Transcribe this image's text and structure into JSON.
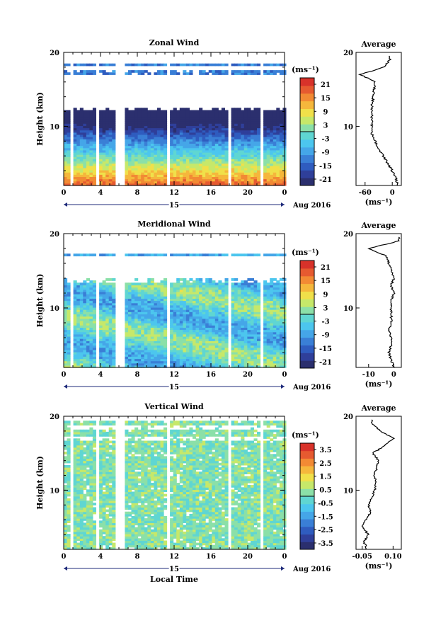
{
  "bottom_xlabel": "Local Time",
  "date_label": "Aug 2016",
  "day_label": "15",
  "palette": [
    "#2b2f6e",
    "#2f3f9a",
    "#2f5cbf",
    "#3a7fd6",
    "#45a6e8",
    "#4cc6ee",
    "#5fd6d2",
    "#8be0a8",
    "#c6e86a",
    "#f0e04a",
    "#f5b73c",
    "#f28a34",
    "#e65a30",
    "#d8322a"
  ],
  "chart_data": [
    {
      "type": "heatmap",
      "title": "Zonal Wind",
      "ylabel": "Height (km)",
      "xlim": [
        0,
        24
      ],
      "ylim": [
        2,
        20
      ],
      "xticks": [
        "0",
        "4",
        "8",
        "12",
        "16",
        "20",
        "0"
      ],
      "yticks": [
        "10",
        "20"
      ],
      "units": "(ms⁻¹)",
      "colorbar_ticks": [
        "21",
        "15",
        "9",
        "3",
        "-3",
        "-9",
        "-15",
        "-21"
      ],
      "colorbar_range": [
        -24,
        24
      ],
      "average": {
        "title": "Average",
        "xlim": [
          -80,
          20
        ],
        "xticks": [
          "-60",
          "0"
        ],
        "xlabel": "(ms⁻¹)",
        "height_km": [
          2,
          3,
          4,
          5,
          6,
          7,
          8,
          9,
          10,
          11,
          12,
          13,
          14,
          15,
          16,
          17,
          18,
          19
        ],
        "value": [
          12,
          8,
          0,
          -10,
          -20,
          -30,
          -38,
          -45,
          -45,
          -45,
          -45,
          -45,
          -42,
          -40,
          -38,
          -70,
          -20,
          -5
        ]
      }
    },
    {
      "type": "heatmap",
      "title": "Meridional Wind",
      "ylabel": "Height (km)",
      "xlim": [
        0,
        24
      ],
      "ylim": [
        2,
        20
      ],
      "xticks": [
        "0",
        "4",
        "8",
        "12",
        "16",
        "20",
        "0"
      ],
      "yticks": [
        "10",
        "20"
      ],
      "units": "(ms⁻¹)",
      "colorbar_ticks": [
        "21",
        "15",
        "9",
        "3",
        "-3",
        "-9",
        "-15",
        "-21"
      ],
      "colorbar_range": [
        -24,
        24
      ],
      "average": {
        "title": "Average",
        "xlim": [
          -15,
          3
        ],
        "xticks": [
          "-10",
          "0"
        ],
        "xlabel": "(ms⁻¹)",
        "height_km": [
          2,
          3,
          4,
          5,
          6,
          7,
          8,
          9,
          10,
          11,
          12,
          13,
          14,
          15,
          16,
          17,
          18,
          19
        ],
        "value": [
          0,
          -1,
          -2,
          -1,
          -1,
          -2,
          -1,
          -1,
          -1,
          -1,
          0,
          -1,
          0,
          -1,
          -2,
          -3,
          -10,
          2
        ]
      }
    },
    {
      "type": "heatmap",
      "title": "Vertical Wind",
      "ylabel": "Height (km)",
      "xlim": [
        0,
        24
      ],
      "ylim": [
        2,
        20
      ],
      "xticks": [
        "0",
        "4",
        "8",
        "12",
        "16",
        "20",
        "0"
      ],
      "yticks": [
        "10",
        "20"
      ],
      "units": "(ms⁻¹)",
      "colorbar_ticks": [
        "3.5",
        "2.5",
        "1.5",
        "0.5",
        "-0.5",
        "-1.5",
        "-2.5",
        "-3.5"
      ],
      "colorbar_range": [
        -4,
        4
      ],
      "average": {
        "title": "Average",
        "xlim": [
          -0.08,
          0.14
        ],
        "xticks": [
          "-0.05",
          "0.10"
        ],
        "xlabel": "(ms⁻¹)",
        "height_km": [
          2,
          3,
          4,
          5,
          6,
          7,
          8,
          9,
          10,
          11,
          12,
          13,
          14,
          15,
          16,
          17,
          18,
          19
        ],
        "value": [
          -0.03,
          -0.04,
          -0.02,
          -0.05,
          -0.03,
          -0.01,
          -0.02,
          0.0,
          0.01,
          0.02,
          0.01,
          0.02,
          0.03,
          0.0,
          0.06,
          0.1,
          0.04,
          0.0
        ]
      }
    }
  ]
}
